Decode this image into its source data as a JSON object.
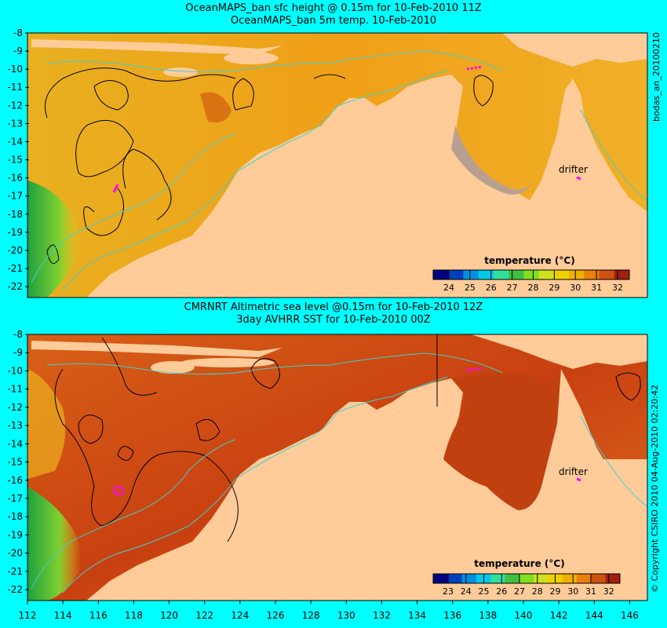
{
  "panels": [
    {
      "title_line1": "OceanMAPS_ban sfc height @ 0.15m for 10-Feb-2010 11Z",
      "title_line2": "OceanMAPS_ban 5m temp. 10-Feb-2010",
      "colorbar_title": "temperature (°C)",
      "colorbar_ticks": [
        "24",
        "25",
        "26",
        "27",
        "28",
        "29",
        "30",
        "31",
        "32"
      ],
      "drifter_label": "drifter",
      "side_label": "bodas_an_20100210"
    },
    {
      "title_line1": "CMRNRT Altimetric sea level  @0.15m  for 10-Feb-2010 12Z",
      "title_line2": "3day AVHRR SST for 10-Feb-2010 00Z",
      "colorbar_title": "temperature (°C)",
      "colorbar_ticks": [
        "23",
        "24",
        "25",
        "26",
        "27",
        "28",
        "29",
        "30",
        "31",
        "32"
      ],
      "drifter_label": "drifter",
      "side_label": "© Copyright CSIRO 2010   04-Aug-2010 02:20:42"
    }
  ],
  "y_ticks": [
    "-8",
    "-9",
    "-10",
    "-11",
    "-12",
    "-13",
    "-14",
    "-15",
    "-16",
    "-17",
    "-18",
    "-19",
    "-20",
    "-21",
    "-22"
  ],
  "x_ticks": [
    "112",
    "114",
    "116",
    "118",
    "120",
    "122",
    "124",
    "126",
    "128",
    "130",
    "132",
    "134",
    "136",
    "138",
    "140",
    "142",
    "144",
    "146"
  ],
  "colors": {
    "background": "#00ffff",
    "land": "#ffcc99",
    "ocean_warm": "#f0a020",
    "ocean_hot": "#c04010",
    "contour": "#000000",
    "isobath": "#40d0d0",
    "drifter_track": "#ff00ff"
  }
}
